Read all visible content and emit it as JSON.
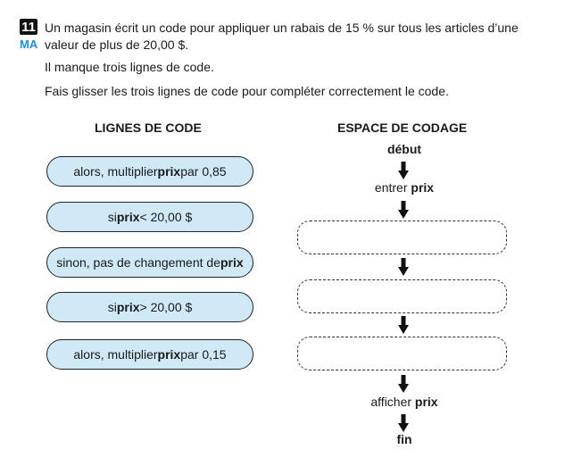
{
  "question": {
    "number": "11",
    "domain": "MA",
    "stem": "Un magasin écrit un code pour appliquer un rabais de 15 % sur tous les articles d’une valeur de plus de 20,00 $.",
    "missing": "Il manque trois lignes de code.",
    "instruction": "Fais glisser les trois lignes de code pour compléter correctement le code."
  },
  "headers": {
    "lines": "LIGNES DE CODE",
    "space": "ESPACE DE CODAGE"
  },
  "code_lines": [
    {
      "before": "alors, multiplier ",
      "bold": "prix",
      "after": " par 0,85"
    },
    {
      "before": "si ",
      "bold": "prix",
      "after": " < 20,00 $"
    },
    {
      "before": "sinon, pas de changement de ",
      "bold": "prix",
      "after": ""
    },
    {
      "before": "si ",
      "bold": "prix",
      "after": " > 20,00 $"
    },
    {
      "before": "alors, multiplier ",
      "bold": "prix",
      "after": " par 0,15"
    }
  ],
  "flow": {
    "start": "début",
    "input_before": "entrer ",
    "input_bold": "prix",
    "output_before": "afficher ",
    "output_bold": "prix",
    "end": "fin"
  },
  "colors": {
    "domain_blue": "#1f8fd6",
    "code_line_fill": "#cfe9f6"
  },
  "icons": [
    "down-arrow-icon"
  ]
}
